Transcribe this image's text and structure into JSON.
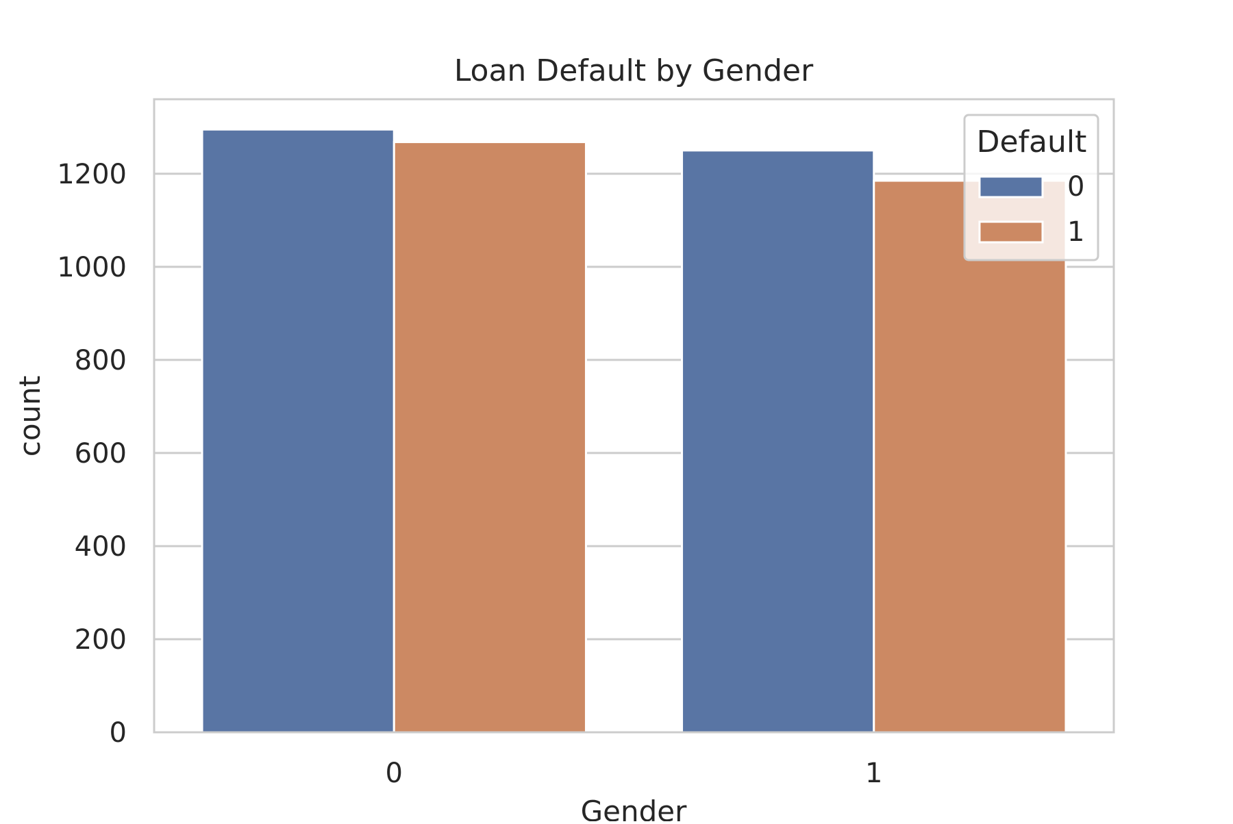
{
  "chart_data": {
    "type": "bar",
    "title": "Loan Default by Gender",
    "xlabel": "Gender",
    "ylabel": "count",
    "categories": [
      "0",
      "1"
    ],
    "series": [
      {
        "name": "0",
        "values": [
          1295,
          1250
        ],
        "color": "#5975a4"
      },
      {
        "name": "1",
        "values": [
          1268,
          1185
        ],
        "color": "#cc8963"
      }
    ],
    "ylim": [
      0,
      1360
    ],
    "yticks": [
      0,
      200,
      400,
      600,
      800,
      1000,
      1200
    ],
    "grid": true,
    "legend": {
      "title": "Default",
      "placement": "top-right"
    }
  }
}
